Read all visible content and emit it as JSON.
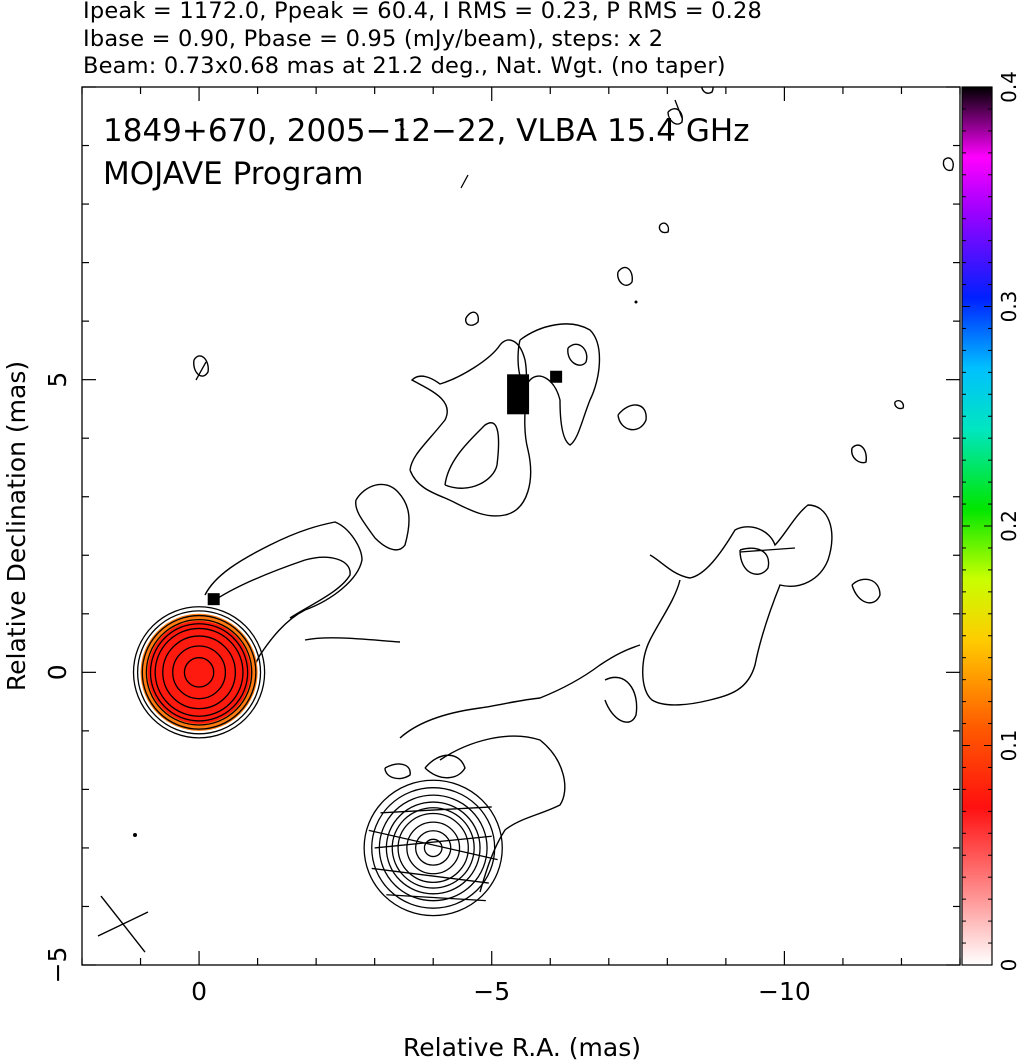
{
  "header": {
    "line1": "Ipeak = 1172.0, Ppeak = 60.4, I RMS = 0.23, P RMS = 0.28",
    "line2": "Ibase = 0.90, Pbase = 0.95 (mJy/beam), steps: x 2",
    "line3": "Beam: 0.73x0.68 mas at 21.2 deg., Nat. Wgt. (no taper)"
  },
  "chart_data": {
    "type": "contour",
    "annotation_line1": "1849+670, 2005−12−22, VLBA 15.4 GHz",
    "annotation_line2": "MOJAVE Program",
    "xlabel": "Relative R.A. (mas)",
    "ylabel": "Relative Declination (mas)",
    "xlim": [
      2,
      -13
    ],
    "ylim": [
      -5,
      10
    ],
    "x_ticks": [
      0,
      -5,
      -10
    ],
    "x_tick_labels": [
      "0",
      "−5",
      "−10"
    ],
    "y_ticks": [
      -5,
      0,
      5
    ],
    "y_tick_labels": [
      "−5",
      "0",
      "5"
    ],
    "colorbar": {
      "range": [
        0,
        0.4
      ],
      "ticks": [
        0,
        0.1,
        0.2,
        0.3,
        0.4
      ],
      "tick_labels": [
        "0",
        "0.1",
        "0.2",
        "0.3",
        "0.4"
      ]
    },
    "core": {
      "x": 0,
      "y": 0,
      "contour_radii_mas": [
        0.25,
        0.45,
        0.62,
        0.75,
        0.83,
        0.9,
        0.97,
        1.05,
        1.12
      ]
    },
    "beam_ellipse": {
      "x": -4,
      "y": -3,
      "contour_radii_mas": [
        0.15,
        0.3,
        0.45,
        0.6,
        0.7,
        0.8,
        0.92,
        1.05,
        1.18
      ]
    },
    "beam_cross": {
      "x": 1.3,
      "y": -4.3
    },
    "polarization_patches": [
      {
        "x": -5.45,
        "y": 4.75
      },
      {
        "x": -6.1,
        "y": 5.05
      },
      {
        "x": -0.25,
        "y": 1.25
      }
    ],
    "colors": {
      "core_fill": "#ff1a10",
      "core_edge": "#ff7a10",
      "patch": "#000000"
    }
  }
}
